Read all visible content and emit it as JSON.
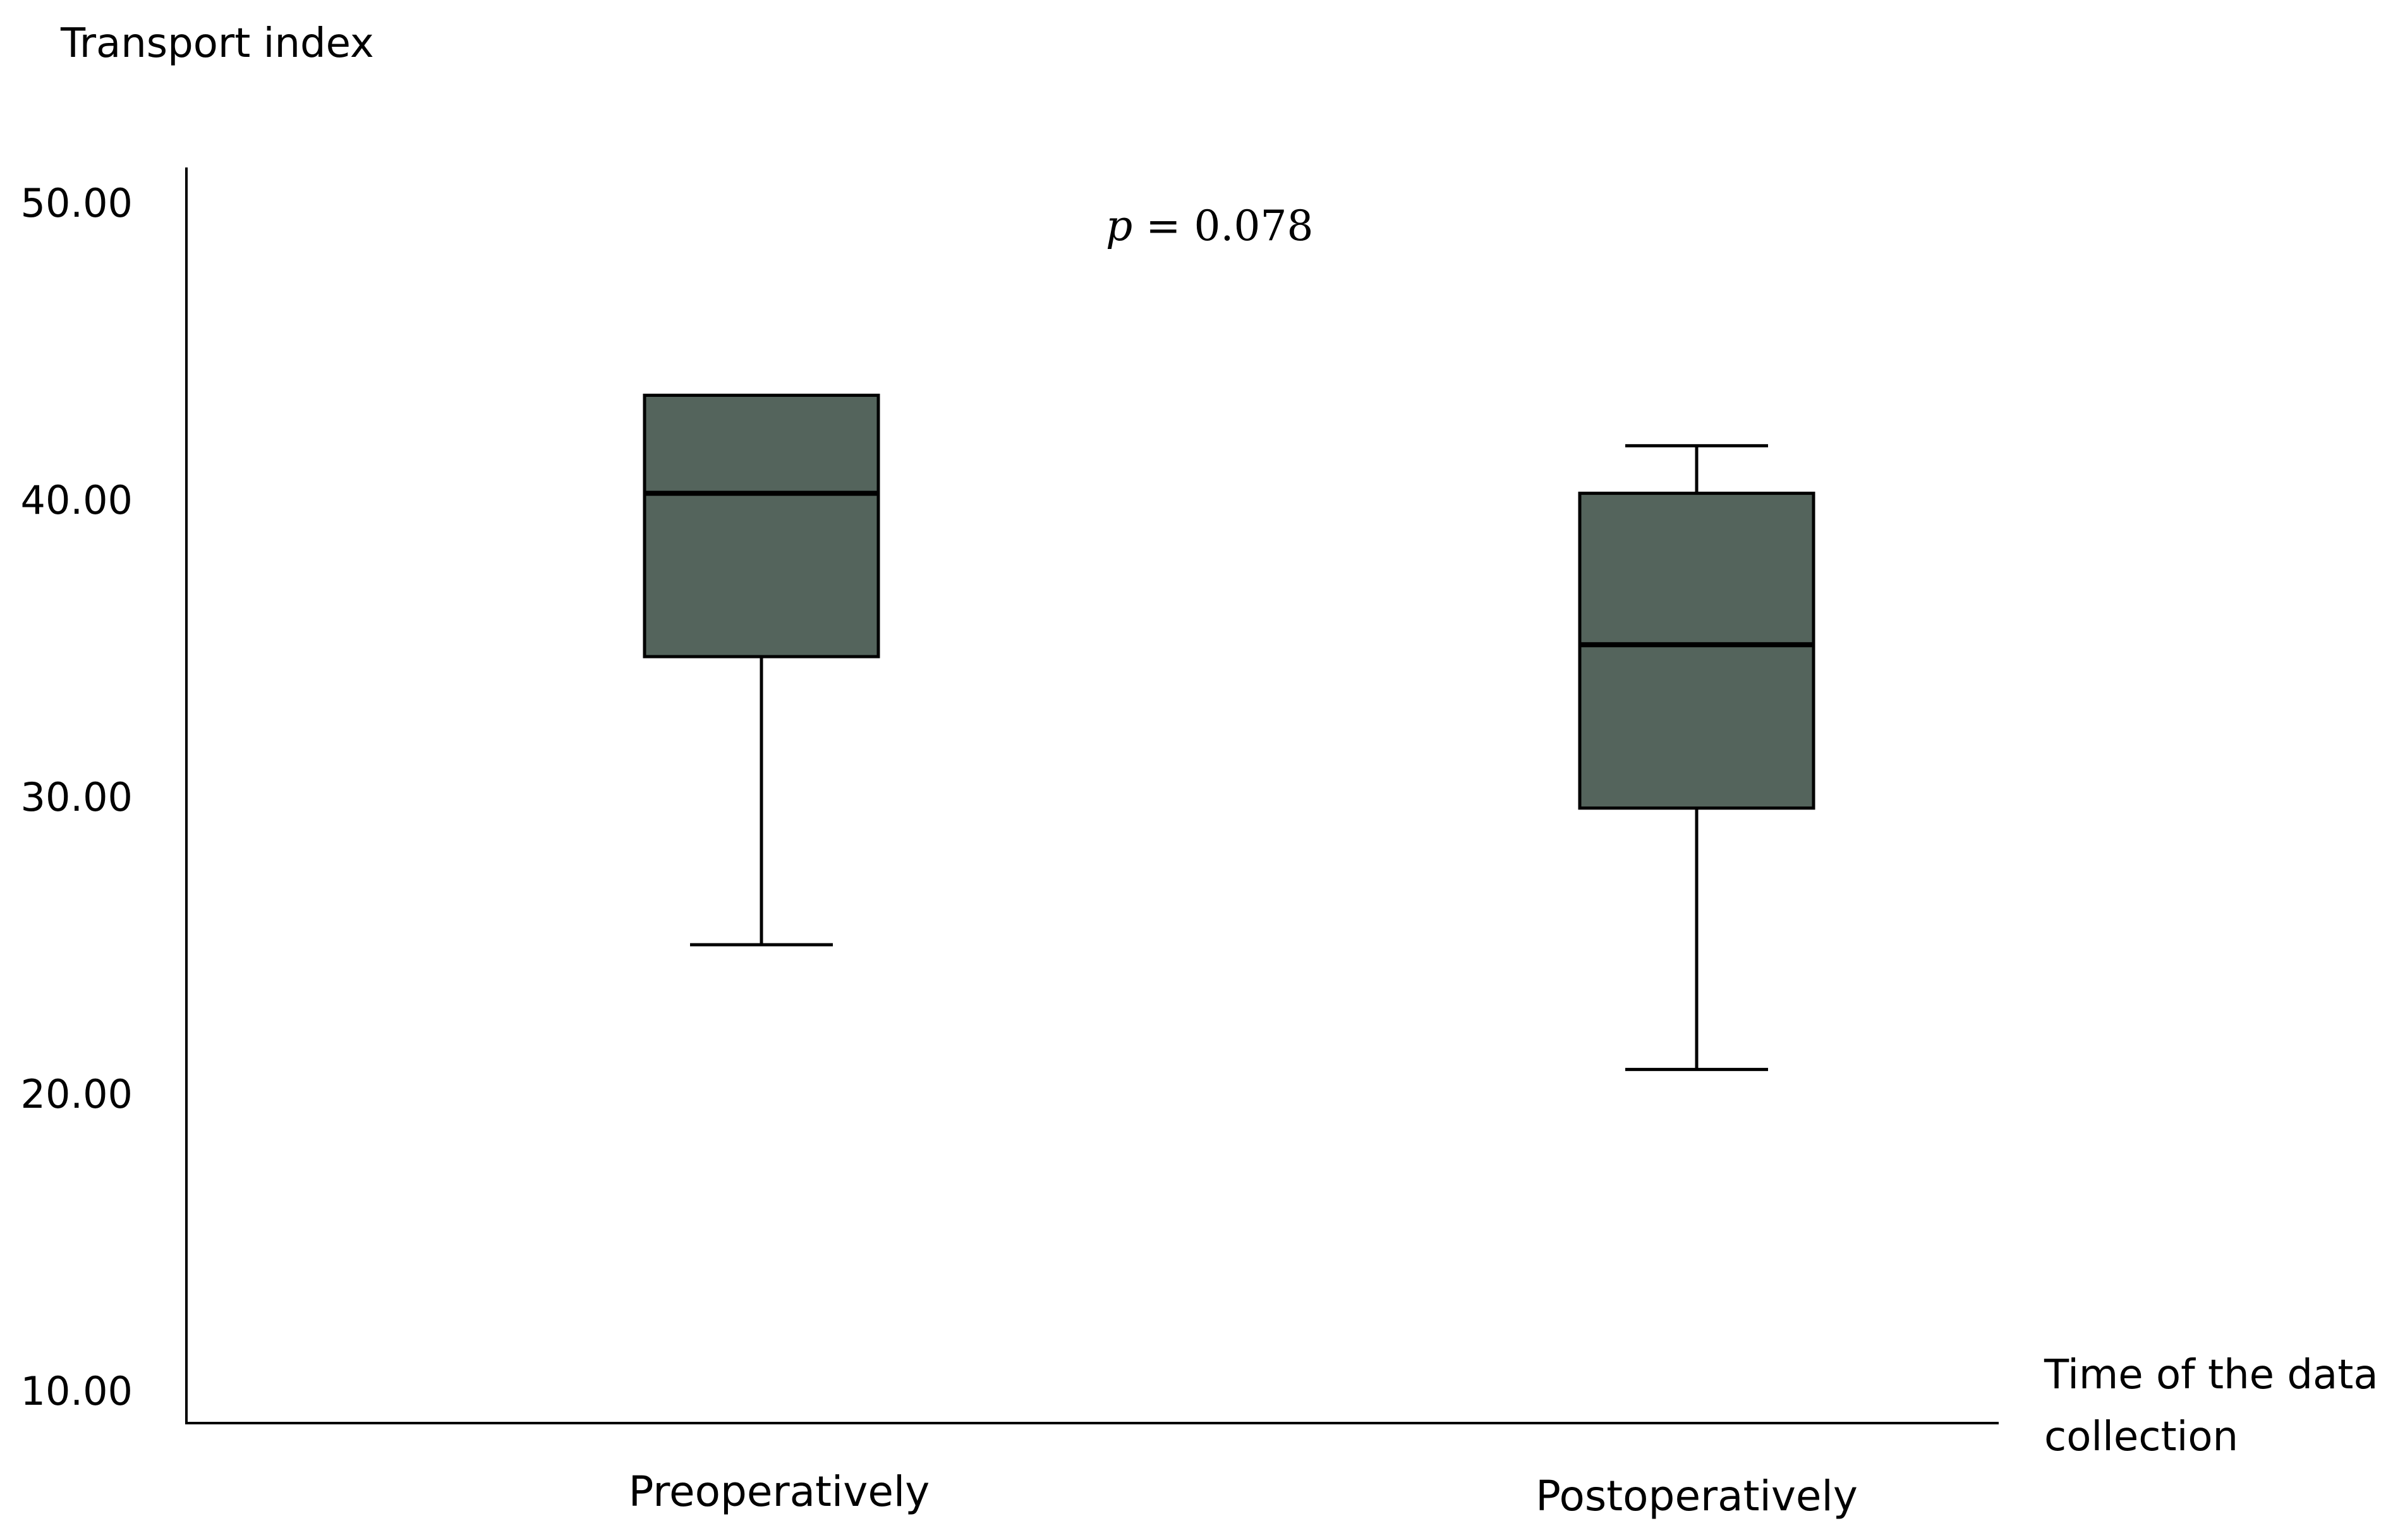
{
  "chart_data": {
    "type": "box",
    "ylabel": "Transport index",
    "xlabel_lines": [
      "Time of the data",
      "collection"
    ],
    "yticks": [
      "50.00",
      "40.00",
      "30.00",
      "20.00",
      "10.00"
    ],
    "ylim": [
      10,
      50
    ],
    "categories": [
      "Preoperatively",
      "Postoperatively"
    ],
    "boxes": [
      {
        "category": "Preoperatively",
        "min": 25.0,
        "q1": 34.7,
        "median": 40.2,
        "q3": 43.5,
        "max": 43.5
      },
      {
        "category": "Postoperatively",
        "min": 20.8,
        "q1": 29.6,
        "median": 35.1,
        "q3": 40.2,
        "max": 41.8
      }
    ],
    "annotation": {
      "p_symbol": "p",
      "text": " = 0.078"
    },
    "grid": false,
    "box_color": "#54645c"
  }
}
